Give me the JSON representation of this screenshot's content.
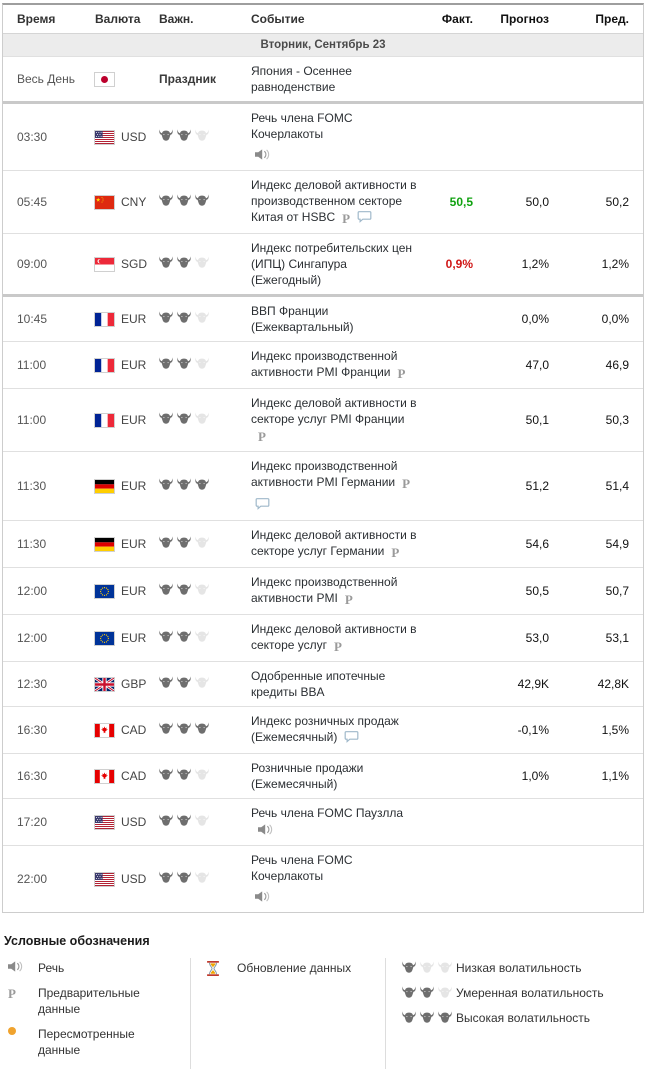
{
  "colors": {
    "actual_up": "#11a211",
    "actual_down": "#d01616",
    "revised_dot": "#f0a32e"
  },
  "table": {
    "columns": {
      "time": "Время",
      "currency": "Валюта",
      "importance": "Важн.",
      "event": "Событие",
      "actual": "Факт.",
      "forecast": "Прогноз",
      "previous": "Пред."
    },
    "date_header": "Вторник, Сентябрь 23",
    "rows": [
      {
        "type": "holiday",
        "time": "Весь День",
        "flag": "jp",
        "currency": "",
        "importance_label": "Праздник",
        "event": "Япония - Осеннее равноденствие",
        "actual": "",
        "forecast": "",
        "previous": ""
      },
      {
        "time": "03:30",
        "flag": "us",
        "currency": "USD",
        "bulls": 2,
        "event": "Речь члена FOMC Кочерлакоты",
        "below_icons": [
          "speech"
        ],
        "actual": "",
        "forecast": "",
        "previous": "",
        "separator": true
      },
      {
        "time": "05:45",
        "flag": "cn",
        "currency": "CNY",
        "bulls": 3,
        "event": "Индекс деловой активности в производственном секторе Китая от HSBC",
        "inline_icons": [
          "prelim",
          "bubble"
        ],
        "actual": "50,5",
        "actual_dir": "up",
        "forecast": "50,0",
        "previous": "50,2"
      },
      {
        "time": "09:00",
        "flag": "sg",
        "currency": "SGD",
        "bulls": 2,
        "event": "Индекс потребительских цен (ИПЦ) Сингапура (Ежегодный)",
        "actual": "0,9%",
        "actual_dir": "down",
        "forecast": "1,2%",
        "previous": "1,2%"
      },
      {
        "time": "10:45",
        "flag": "fr",
        "currency": "EUR",
        "bulls": 2,
        "event": "ВВП Франции (Ежеквартальный)",
        "actual": "",
        "forecast": "0,0%",
        "previous": "0,0%",
        "separator": true
      },
      {
        "time": "11:00",
        "flag": "fr",
        "currency": "EUR",
        "bulls": 2,
        "event": "Индекс производственной активности PMI Франции",
        "inline_icons": [
          "prelim"
        ],
        "actual": "",
        "forecast": "47,0",
        "previous": "46,9"
      },
      {
        "time": "11:00",
        "flag": "fr",
        "currency": "EUR",
        "bulls": 2,
        "event": "Индекс деловой активности в секторе услуг PMI Франции",
        "inline_icons": [
          "prelim"
        ],
        "actual": "",
        "forecast": "50,1",
        "previous": "50,3"
      },
      {
        "time": "11:30",
        "flag": "de",
        "currency": "EUR",
        "bulls": 3,
        "event": "Индекс производственной активности PMI Германии",
        "inline_icons": [
          "prelim"
        ],
        "below_icons": [
          "bubble"
        ],
        "actual": "",
        "forecast": "51,2",
        "previous": "51,4"
      },
      {
        "time": "11:30",
        "flag": "de",
        "currency": "EUR",
        "bulls": 2,
        "event": "Индекс деловой активности в секторе услуг Германии",
        "inline_icons": [
          "prelim"
        ],
        "actual": "",
        "forecast": "54,6",
        "previous": "54,9"
      },
      {
        "time": "12:00",
        "flag": "eu",
        "currency": "EUR",
        "bulls": 2,
        "event": "Индекс производственной активности PMI",
        "inline_icons": [
          "prelim"
        ],
        "actual": "",
        "forecast": "50,5",
        "previous": "50,7"
      },
      {
        "time": "12:00",
        "flag": "eu",
        "currency": "EUR",
        "bulls": 2,
        "event": "Индекс деловой активности в секторе услуг",
        "inline_icons": [
          "prelim"
        ],
        "actual": "",
        "forecast": "53,0",
        "previous": "53,1"
      },
      {
        "time": "12:30",
        "flag": "gb",
        "currency": "GBP",
        "bulls": 2,
        "event": "Одобренные ипотечные кредиты BBA",
        "actual": "",
        "forecast": "42,9K",
        "previous": "42,8K"
      },
      {
        "time": "16:30",
        "flag": "ca",
        "currency": "CAD",
        "bulls": 3,
        "event": "Индекс розничных продаж (Ежемесячный)",
        "inline_icons": [
          "bubble"
        ],
        "actual": "",
        "forecast": "-0,1%",
        "previous": "1,5%"
      },
      {
        "time": "16:30",
        "flag": "ca",
        "currency": "CAD",
        "bulls": 2,
        "event": "Розничные продажи (Ежемесячный)",
        "actual": "",
        "forecast": "1,0%",
        "previous": "1,1%"
      },
      {
        "time": "17:20",
        "flag": "us",
        "currency": "USD",
        "bulls": 2,
        "event": "Речь члена FOMC Паузлла",
        "inline_icons": [
          "speech"
        ],
        "actual": "",
        "forecast": "",
        "previous": ""
      },
      {
        "time": "22:00",
        "flag": "us",
        "currency": "USD",
        "bulls": 2,
        "event": "Речь члена FOMC Кочерлакоты",
        "below_icons": [
          "speech"
        ],
        "actual": "",
        "forecast": "",
        "previous": ""
      }
    ]
  },
  "legend": {
    "title": "Условные обозначения",
    "col1": [
      {
        "icon": "speech",
        "label": "Речь"
      },
      {
        "icon": "prelim",
        "label": "Предварительные данные"
      },
      {
        "icon": "revised",
        "label": "Пересмотренные данные"
      }
    ],
    "col2": [
      {
        "icon": "hourglass",
        "label": "Обновление данных"
      }
    ],
    "col3": [
      {
        "bulls": 1,
        "label": "Низкая волатильность"
      },
      {
        "bulls": 2,
        "label": "Умеренная волатильность"
      },
      {
        "bulls": 3,
        "label": "Высокая волатильность"
      }
    ]
  }
}
